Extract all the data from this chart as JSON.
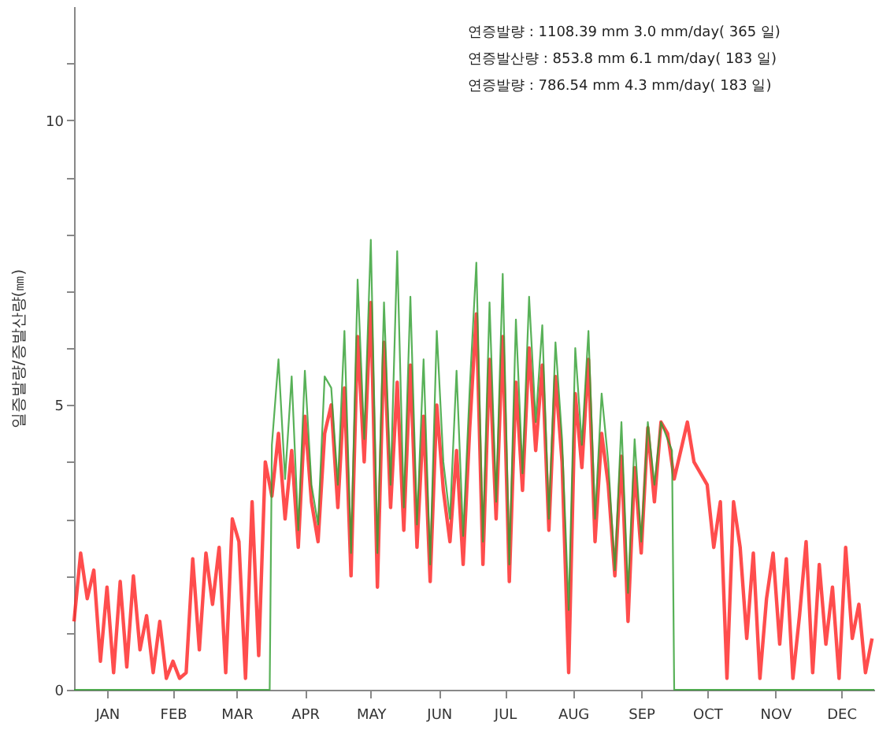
{
  "chart_data": {
    "type": "line",
    "ylabel": "일증발량/증발산량(㎜)",
    "annotations": [
      "연증발량   : 1108.39 mm  3.0 mm/day( 365 일)",
      "연증발산량 : 853.8 mm  6.1 mm/day( 183 일)",
      "연증발량   : 786.54 mm  4.3 mm/day( 183 일)"
    ],
    "xlim": [
      "--01-01",
      "--12-31"
    ],
    "xticks": [
      {
        "value": "--01-16",
        "label": "JAN"
      },
      {
        "value": "--02-15",
        "label": "FEB"
      },
      {
        "value": "--03-16",
        "label": "MAR"
      },
      {
        "value": "--04-16",
        "label": "APR"
      },
      {
        "value": "--05-16",
        "label": "MAY"
      },
      {
        "value": "--06-16",
        "label": "JUN"
      },
      {
        "value": "--07-16",
        "label": "JUL"
      },
      {
        "value": "--08-16",
        "label": "AUG"
      },
      {
        "value": "--09-16",
        "label": "SEP"
      },
      {
        "value": "--10-16",
        "label": "OCT"
      },
      {
        "value": "--11-16",
        "label": "NOV"
      },
      {
        "value": "--12-16",
        "label": "DEC"
      }
    ],
    "ylim": [
      0,
      12
    ],
    "yticks": [
      0,
      {
        "value": 1,
        "label": null
      },
      {
        "value": 2,
        "label": null
      },
      {
        "value": 3,
        "label": null
      },
      {
        "value": 4,
        "label": null
      },
      5,
      {
        "value": 6,
        "label": null
      },
      {
        "value": 7,
        "label": null
      },
      {
        "value": 8,
        "label": null
      },
      {
        "value": 9,
        "label": null
      },
      10,
      {
        "value": 11,
        "label": null
      }
    ],
    "grid": false,
    "legend": false,
    "marker": "none",
    "line_style": "solid",
    "series": [
      {
        "color": "#ff2020",
        "x": [
          "--01-01",
          "--01-04",
          "--01-07",
          "--01-10",
          "--01-13",
          "--01-16",
          "--01-19",
          "--01-22",
          "--01-25",
          "--01-28",
          "--01-31",
          "--02-03",
          "--02-06",
          "--02-09",
          "--02-12",
          "--02-15",
          "--02-18",
          "--02-21",
          "--02-24",
          "--02-27",
          "--03-02",
          "--03-05",
          "--03-08",
          "--03-11",
          "--03-14",
          "--03-17",
          "--03-20",
          "--03-23",
          "--03-26",
          "--03-29",
          "--04-01",
          "--04-04",
          "--04-07",
          "--04-10",
          "--04-13",
          "--04-16",
          "--04-19",
          "--04-22",
          "--04-25",
          "--04-28",
          "--05-01",
          "--05-04",
          "--05-07",
          "--05-10",
          "--05-13",
          "--05-16",
          "--05-19",
          "--05-22",
          "--05-25",
          "--05-28",
          "--05-31",
          "--06-03",
          "--06-06",
          "--06-09",
          "--06-12",
          "--06-15",
          "--06-18",
          "--06-21",
          "--06-24",
          "--06-27",
          "--06-30",
          "--07-03",
          "--07-06",
          "--07-09",
          "--07-12",
          "--07-15",
          "--07-18",
          "--07-21",
          "--07-24",
          "--07-27",
          "--07-30",
          "--08-02",
          "--08-05",
          "--08-08",
          "--08-11",
          "--08-14",
          "--08-17",
          "--08-20",
          "--08-23",
          "--08-26",
          "--08-29",
          "--09-01",
          "--09-04",
          "--09-07",
          "--09-10",
          "--09-13",
          "--09-16",
          "--09-19",
          "--09-22",
          "--09-25",
          "--09-28",
          "--10-01",
          "--10-04",
          "--10-07",
          "--10-10",
          "--10-13",
          "--10-16",
          "--10-19",
          "--10-22",
          "--10-25",
          "--10-28",
          "--10-31",
          "--11-03",
          "--11-06",
          "--11-09",
          "--11-12",
          "--11-15",
          "--11-18",
          "--11-21",
          "--11-24",
          "--11-27",
          "--11-30",
          "--12-03",
          "--12-06",
          "--12-09",
          "--12-12",
          "--12-15",
          "--12-18",
          "--12-21",
          "--12-24",
          "--12-27",
          "--12-30"
        ],
        "values": [
          1.2,
          2.4,
          1.6,
          2.1,
          0.5,
          1.8,
          0.3,
          1.9,
          0.4,
          2.0,
          0.7,
          1.3,
          0.3,
          1.2,
          0.2,
          0.5,
          0.2,
          0.3,
          2.3,
          0.7,
          2.4,
          1.5,
          2.5,
          0.3,
          3.0,
          2.6,
          0.2,
          3.3,
          0.6,
          4.0,
          3.4,
          4.5,
          3.0,
          4.2,
          2.5,
          4.8,
          3.3,
          2.6,
          4.5,
          5.0,
          3.2,
          5.3,
          2.0,
          6.2,
          4.0,
          6.8,
          1.8,
          6.1,
          3.2,
          5.4,
          2.8,
          5.7,
          2.5,
          4.8,
          1.9,
          5.0,
          3.5,
          2.6,
          4.2,
          2.2,
          4.6,
          6.6,
          2.2,
          5.8,
          3.0,
          6.2,
          1.9,
          5.4,
          3.5,
          6.0,
          4.2,
          5.7,
          2.8,
          5.5,
          4.0,
          0.3,
          5.2,
          3.9,
          5.8,
          2.6,
          4.5,
          3.6,
          2.0,
          4.1,
          1.2,
          3.9,
          2.4,
          4.6,
          3.3,
          4.7,
          4.5,
          3.7,
          4.2,
          4.7,
          4.0,
          3.8,
          3.6,
          2.5,
          3.3,
          0.2,
          3.3,
          2.5,
          0.9,
          2.4,
          0.2,
          1.6,
          2.4,
          0.8,
          2.3,
          0.2,
          1.3,
          2.6,
          0.3,
          2.2,
          0.8,
          1.8,
          0.2,
          2.5,
          0.9,
          1.5,
          0.3,
          0.9
        ]
      },
      {
        "color": "#2e9e2e",
        "x": [
          "--01-01",
          "--03-31",
          "--04-01",
          "--04-04",
          "--04-07",
          "--04-10",
          "--04-13",
          "--04-16",
          "--04-19",
          "--04-22",
          "--04-25",
          "--04-28",
          "--05-01",
          "--05-04",
          "--05-07",
          "--05-10",
          "--05-13",
          "--05-16",
          "--05-19",
          "--05-22",
          "--05-25",
          "--05-28",
          "--05-31",
          "--06-03",
          "--06-06",
          "--06-09",
          "--06-12",
          "--06-15",
          "--06-18",
          "--06-21",
          "--06-24",
          "--06-27",
          "--06-30",
          "--07-03",
          "--07-06",
          "--07-09",
          "--07-12",
          "--07-15",
          "--07-18",
          "--07-21",
          "--07-24",
          "--07-27",
          "--07-30",
          "--08-02",
          "--08-05",
          "--08-08",
          "--08-11",
          "--08-14",
          "--08-17",
          "--08-20",
          "--08-23",
          "--08-26",
          "--08-29",
          "--09-01",
          "--09-04",
          "--09-07",
          "--09-10",
          "--09-13",
          "--09-16",
          "--09-19",
          "--09-22",
          "--09-25",
          "--09-28",
          "--09-30",
          "--10-01",
          "--12-31"
        ],
        "values": [
          0,
          0,
          4.3,
          5.8,
          3.7,
          5.5,
          2.8,
          5.6,
          3.6,
          2.9,
          5.5,
          5.3,
          3.6,
          6.3,
          2.4,
          7.2,
          4.4,
          7.9,
          2.4,
          6.8,
          3.6,
          7.7,
          3.2,
          6.9,
          2.9,
          5.8,
          2.2,
          6.3,
          4.0,
          3.0,
          5.6,
          2.7,
          5.3,
          7.5,
          2.6,
          6.8,
          3.3,
          7.3,
          2.2,
          6.5,
          3.8,
          6.9,
          4.7,
          6.4,
          3.0,
          6.1,
          4.4,
          1.4,
          6.0,
          4.3,
          6.3,
          3.0,
          5.2,
          4.0,
          2.1,
          4.7,
          1.7,
          4.4,
          2.6,
          4.7,
          3.6,
          4.7,
          4.4,
          4.2,
          0,
          0
        ]
      }
    ]
  }
}
